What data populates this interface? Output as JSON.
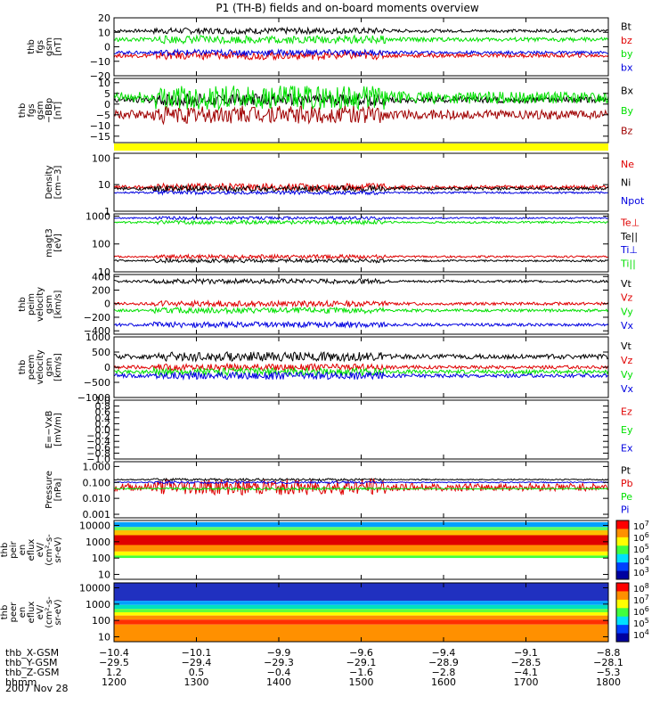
{
  "title": "P1 (TH-B) fields and on-board moments overview",
  "date": "2007 Nov 28",
  "colors": {
    "black": "#000000",
    "red": "#e00000",
    "green": "#00e000",
    "blue": "#0000e0",
    "darkred": "#a00000",
    "yellow": "#ffff00"
  },
  "chart_data": [
    {
      "type": "line",
      "ylabel": [
        "thb",
        "fgs",
        "gsm",
        "[nT]"
      ],
      "yscale": "linear",
      "ylim": [
        -20,
        20
      ],
      "ticks": [
        {
          "v": 20,
          "label": "20"
        },
        {
          "v": 10,
          "label": "10"
        },
        {
          "v": 0,
          "label": "0"
        },
        {
          "v": -10,
          "label": "−10"
        },
        {
          "v": -20,
          "label": "−20"
        }
      ],
      "series": [
        {
          "name": "Bt",
          "color": "#000000",
          "level": 11,
          "noise": 1.5,
          "width": 1
        },
        {
          "name": "bz",
          "color": "#e00000",
          "level": -6,
          "noise": 2,
          "width": 1
        },
        {
          "name": "by",
          "color": "#00e000",
          "level": 5,
          "noise": 2,
          "width": 1
        },
        {
          "name": "bx",
          "color": "#0000e0",
          "level": -4,
          "noise": 1.5,
          "width": 1
        }
      ]
    },
    {
      "type": "line",
      "ylabel": [
        "thb",
        "fgs",
        "gsm",
        "−BBp",
        "[nT]"
      ],
      "yscale": "linear",
      "ylim": [
        -18,
        12
      ],
      "ticks": [
        {
          "v": 10,
          "label": "10"
        },
        {
          "v": 5,
          "label": "5"
        },
        {
          "v": 0,
          "label": "0"
        },
        {
          "v": -5,
          "label": "−5"
        },
        {
          "v": -10,
          "label": "−10"
        },
        {
          "v": -15,
          "label": "−15"
        }
      ],
      "series": [
        {
          "name": "Bx",
          "color": "#000000",
          "level": 2,
          "noise": 2,
          "width": 1
        },
        {
          "name": "By",
          "color": "#00e000",
          "level": 3,
          "noise": 4,
          "width": 1
        },
        {
          "name": "Bz",
          "color": "#a00000",
          "level": -5,
          "noise": 3,
          "width": 1
        }
      ]
    },
    {
      "type": "line",
      "ylabel": [
        "Density",
        "[cm−3]"
      ],
      "yscale": "log",
      "ylim": [
        1,
        150
      ],
      "ticks": [
        {
          "v": 100,
          "label": "100"
        },
        {
          "v": 10,
          "label": "10"
        },
        {
          "v": 1,
          "label": "1"
        }
      ],
      "series": [
        {
          "name": "Ne",
          "color": "#e00000",
          "level": 8,
          "noise": 0.1,
          "width": 1
        },
        {
          "name": "Ni",
          "color": "#000000",
          "level": 7,
          "noise": 0.08,
          "width": 1
        },
        {
          "name": "Npot",
          "color": "#0000e0",
          "level": 5,
          "noise": 0.05,
          "width": 1
        }
      ]
    },
    {
      "type": "line",
      "ylabel": [
        "magt3",
        "[eV]"
      ],
      "yscale": "log",
      "ylim": [
        10,
        1200
      ],
      "ticks": [
        {
          "v": 1000,
          "label": "1000"
        },
        {
          "v": 100,
          "label": "100"
        },
        {
          "v": 10,
          "label": "10"
        }
      ],
      "series": [
        {
          "name": "Te⊥",
          "color": "#e00000",
          "level": 35,
          "noise": 0.05,
          "width": 1
        },
        {
          "name": "Te||",
          "color": "#000000",
          "level": 25,
          "noise": 0.05,
          "width": 1
        },
        {
          "name": "Ti⊥",
          "color": "#0000e0",
          "level": 850,
          "noise": 0.04,
          "width": 1
        },
        {
          "name": "Ti||",
          "color": "#00e000",
          "level": 600,
          "noise": 0.05,
          "width": 1
        }
      ]
    },
    {
      "type": "line",
      "ylabel": [
        "thb",
        "peim",
        "velocity",
        "gsm",
        "[km/s]"
      ],
      "yscale": "linear",
      "ylim": [
        -450,
        430
      ],
      "ticks": [
        {
          "v": 400,
          "label": "400"
        },
        {
          "v": 200,
          "label": "200"
        },
        {
          "v": 0,
          "label": "0"
        },
        {
          "v": -200,
          "label": "−200"
        },
        {
          "v": -400,
          "label": "−400"
        }
      ],
      "series": [
        {
          "name": "Vt",
          "color": "#000000",
          "level": 330,
          "noise": 25,
          "width": 1
        },
        {
          "name": "Vz",
          "color": "#e00000",
          "level": 0,
          "noise": 30,
          "width": 1
        },
        {
          "name": "Vy",
          "color": "#00e000",
          "level": -100,
          "noise": 30,
          "width": 1
        },
        {
          "name": "Vx",
          "color": "#0000e0",
          "level": -310,
          "noise": 30,
          "width": 1
        }
      ]
    },
    {
      "type": "line",
      "ylabel": [
        "thb",
        "peem",
        "velocity",
        "gsm",
        "[km/s]"
      ],
      "yscale": "linear",
      "ylim": [
        -1000,
        1000
      ],
      "ticks": [
        {
          "v": 1000,
          "label": "1000"
        },
        {
          "v": 500,
          "label": "500"
        },
        {
          "v": 0,
          "label": "0"
        },
        {
          "v": -500,
          "label": "−500"
        },
        {
          "v": -1000,
          "label": "−1000"
        }
      ],
      "series": [
        {
          "name": "Vt",
          "color": "#000000",
          "level": 350,
          "noise": 110,
          "width": 1
        },
        {
          "name": "Vz",
          "color": "#e00000",
          "level": 0,
          "noise": 80,
          "width": 1
        },
        {
          "name": "Vy",
          "color": "#00e000",
          "level": -150,
          "noise": 90,
          "width": 1
        },
        {
          "name": "Vx",
          "color": "#0000e0",
          "level": -280,
          "noise": 90,
          "width": 1
        }
      ]
    },
    {
      "type": "line",
      "ylabel": [
        "E=−VxB",
        "[mV/m]"
      ],
      "yscale": "linear",
      "ylim": [
        -1,
        1
      ],
      "ticks": [
        {
          "v": 1,
          "label": "1.0"
        },
        {
          "v": 0.8,
          "label": "0.8"
        },
        {
          "v": 0.6,
          "label": "0.6"
        },
        {
          "v": 0.4,
          "label": "0.4"
        },
        {
          "v": 0.2,
          "label": "0.2"
        },
        {
          "v": 0,
          "label": "0.0"
        },
        {
          "v": -0.2,
          "label": "−0.2"
        },
        {
          "v": -0.4,
          "label": "−0.4"
        },
        {
          "v": -0.6,
          "label": "−0.6"
        },
        {
          "v": -0.8,
          "label": "−0.8"
        },
        {
          "v": -1,
          "label": "−1.0"
        }
      ],
      "series": [
        {
          "name": "Ez",
          "color": "#e00000",
          "level": null,
          "noise": 0,
          "width": 1
        },
        {
          "name": "Ey",
          "color": "#00e000",
          "level": null,
          "noise": 0,
          "width": 1
        },
        {
          "name": "Ex",
          "color": "#0000e0",
          "level": null,
          "noise": 0,
          "width": 1
        }
      ]
    },
    {
      "type": "line",
      "ylabel": [
        "Pressure",
        "[nPa]"
      ],
      "yscale": "log",
      "ylim": [
        0.0006,
        2
      ],
      "ticks": [
        {
          "v": 1,
          "label": "1.000"
        },
        {
          "v": 0.1,
          "label": "0.100"
        },
        {
          "v": 0.01,
          "label": "0.010"
        },
        {
          "v": 0.001,
          "label": "0.001"
        }
      ],
      "series": [
        {
          "name": "Pt",
          "color": "#000000",
          "level": 0.15,
          "noise": 0.05,
          "width": 1
        },
        {
          "name": "Pb",
          "color": "#e00000",
          "level": 0.05,
          "noise": 0.35,
          "width": 1
        },
        {
          "name": "Pe",
          "color": "#00e000",
          "level": 0.04,
          "noise": 0.05,
          "width": 1
        },
        {
          "name": "Pi",
          "color": "#0000e0",
          "level": 0.1,
          "noise": 0.05,
          "width": 1
        }
      ]
    },
    {
      "type": "heatmap",
      "ylabel": [
        "thb",
        "peir",
        "en",
        "eflux",
        "eV/",
        "(cm²-s-",
        "sr-eV)"
      ],
      "yscale": "log",
      "ylim": [
        5,
        20000
      ],
      "ticks": [
        {
          "v": 10000,
          "label": "10000"
        },
        {
          "v": 1000,
          "label": "1000"
        },
        {
          "v": 100,
          "label": "100"
        },
        {
          "v": 10,
          "label": "10"
        }
      ],
      "colorbar": [
        {
          "label": "10",
          "exp": "7"
        },
        {
          "label": "10",
          "exp": "6"
        },
        {
          "label": "10",
          "exp": "5"
        },
        {
          "label": "10",
          "exp": "4"
        },
        {
          "label": "10",
          "exp": "3"
        }
      ],
      "bands": [
        [
          4.2,
          "#ffffff"
        ],
        [
          3.9,
          "#00a0ff"
        ],
        [
          3.7,
          "#60ff60"
        ],
        [
          3.4,
          "#ffc000"
        ],
        [
          2.8,
          "#e00000"
        ],
        [
          2.4,
          "#ff9000"
        ],
        [
          2.15,
          "#ffff00"
        ],
        [
          2.0,
          "#40ff40"
        ],
        [
          1.0,
          "#ffffff"
        ]
      ]
    },
    {
      "type": "heatmap",
      "ylabel": [
        "thb",
        "peer",
        "en",
        "eflux",
        "eV/",
        "(cm²-s-",
        "sr-eV)"
      ],
      "yscale": "log",
      "ylim": [
        5,
        20000
      ],
      "ticks": [
        {
          "v": 10000,
          "label": "10000"
        },
        {
          "v": 1000,
          "label": "1000"
        },
        {
          "v": 100,
          "label": "100"
        },
        {
          "v": 10,
          "label": "10"
        }
      ],
      "colorbar": [
        {
          "label": "10",
          "exp": "8"
        },
        {
          "label": "10",
          "exp": "7"
        },
        {
          "label": "10",
          "exp": "6"
        },
        {
          "label": "10",
          "exp": "5"
        },
        {
          "label": "10",
          "exp": "4"
        }
      ],
      "bands": [
        [
          4.3,
          "#1a1a80"
        ],
        [
          3.2,
          "#2030c0"
        ],
        [
          2.95,
          "#00a0ff"
        ],
        [
          2.7,
          "#00e0c0"
        ],
        [
          2.5,
          "#60ff40"
        ],
        [
          2.3,
          "#ffff00"
        ],
        [
          2.05,
          "#ff9000"
        ],
        [
          1.75,
          "#ff3000"
        ],
        [
          1.0,
          "#ff9000"
        ]
      ]
    }
  ],
  "x_axis": {
    "rows": [
      {
        "label": "thb_X-GSM",
        "values": [
          "−10.4",
          "−10.1",
          "−9.9",
          "−9.6",
          "−9.4",
          "−9.1",
          "−8.8"
        ]
      },
      {
        "label": "thb_Y-GSM",
        "values": [
          "−29.5",
          "−29.4",
          "−29.3",
          "−29.1",
          "−28.9",
          "−28.5",
          "−28.1"
        ]
      },
      {
        "label": "thb_Z-GSM",
        "values": [
          "1.2",
          "0.5",
          "−0.4",
          "−1.6",
          "−2.8",
          "−4.1",
          "−5.3"
        ]
      },
      {
        "label": "hhmm",
        "values": [
          "1200",
          "1300",
          "1400",
          "1500",
          "1600",
          "1700",
          "1800"
        ]
      }
    ]
  }
}
